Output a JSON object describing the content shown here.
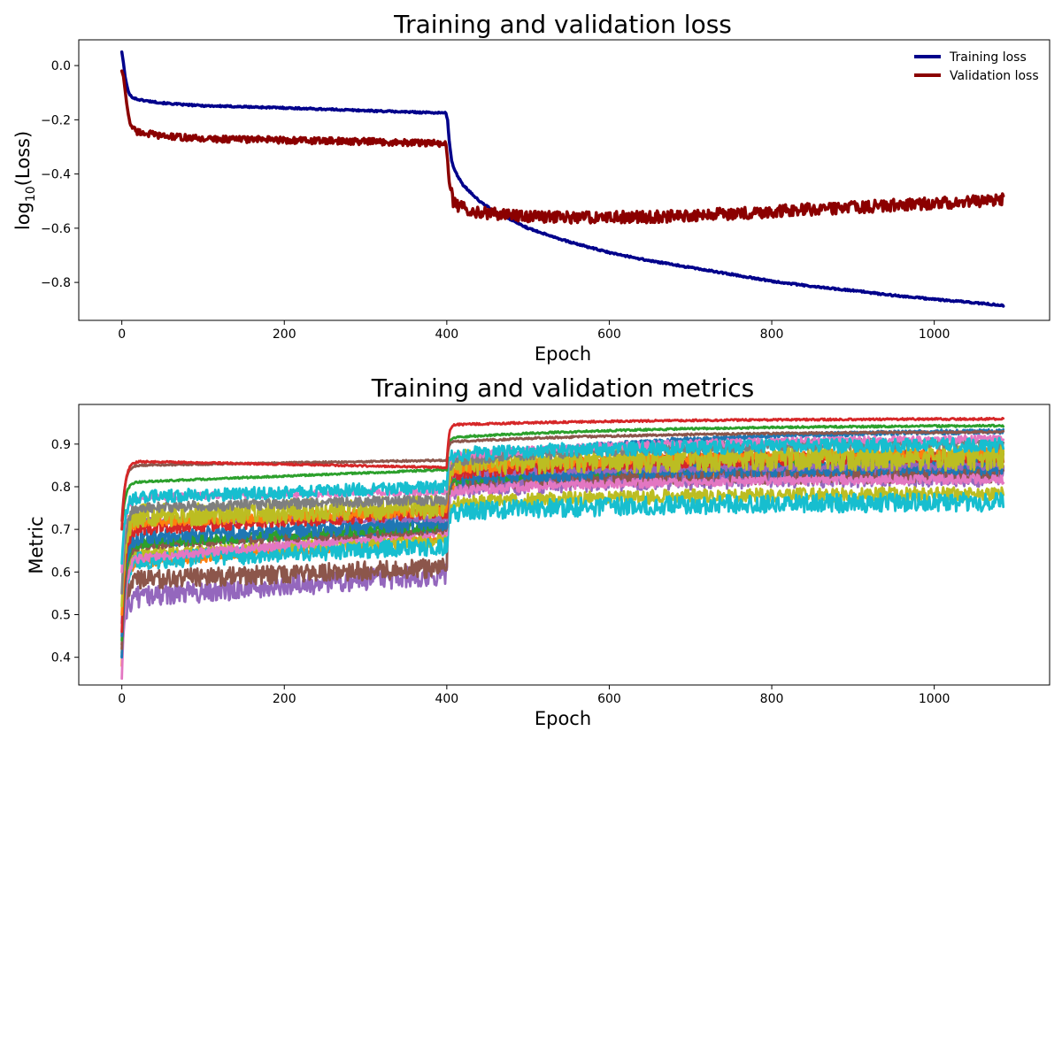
{
  "chart_data": [
    {
      "type": "line",
      "title": "Training and validation loss",
      "xlabel": "Epoch",
      "ylabel": "log10(Loss)",
      "ylabel_main": "log",
      "ylabel_sub": "10",
      "ylabel_tail": "(Loss)",
      "xlim": [
        -53,
        1142
      ],
      "ylim": [
        -0.94,
        0.095
      ],
      "xticks": [
        0,
        200,
        400,
        600,
        800,
        1000
      ],
      "yticks": [
        0.0,
        -0.2,
        -0.4,
        -0.6,
        -0.8
      ],
      "xtick_labels": [
        "0",
        "200",
        "400",
        "600",
        "800",
        "1000"
      ],
      "ytick_labels": [
        "0.0",
        "−0.2",
        "−0.4",
        "−0.6",
        "−0.8"
      ],
      "grid": false,
      "legend_position": "top-right",
      "series": [
        {
          "name": "Training loss",
          "color": "#00008b",
          "points": [
            [
              0,
              0.05
            ],
            [
              2,
              0.01
            ],
            [
              4,
              -0.04
            ],
            [
              6,
              -0.07
            ],
            [
              8,
              -0.095
            ],
            [
              10,
              -0.11
            ],
            [
              15,
              -0.12
            ],
            [
              20,
              -0.125
            ],
            [
              30,
              -0.13
            ],
            [
              50,
              -0.138
            ],
            [
              75,
              -0.144
            ],
            [
              100,
              -0.148
            ],
            [
              150,
              -0.152
            ],
            [
              200,
              -0.156
            ],
            [
              250,
              -0.161
            ],
            [
              300,
              -0.166
            ],
            [
              350,
              -0.171
            ],
            [
              399,
              -0.175
            ],
            [
              401,
              -0.2
            ],
            [
              403,
              -0.28
            ],
            [
              406,
              -0.35
            ],
            [
              410,
              -0.39
            ],
            [
              420,
              -0.44
            ],
            [
              430,
              -0.47
            ],
            [
              440,
              -0.5
            ],
            [
              460,
              -0.54
            ],
            [
              480,
              -0.57
            ],
            [
              500,
              -0.6
            ],
            [
              550,
              -0.65
            ],
            [
              600,
              -0.69
            ],
            [
              650,
              -0.72
            ],
            [
              700,
              -0.745
            ],
            [
              750,
              -0.77
            ],
            [
              800,
              -0.795
            ],
            [
              850,
              -0.815
            ],
            [
              900,
              -0.83
            ],
            [
              950,
              -0.848
            ],
            [
              1000,
              -0.862
            ],
            [
              1050,
              -0.875
            ],
            [
              1085,
              -0.885
            ]
          ]
        },
        {
          "name": "Validation loss",
          "color": "#8b0000",
          "points": [
            [
              0,
              -0.02
            ],
            [
              2,
              -0.04
            ],
            [
              4,
              -0.09
            ],
            [
              6,
              -0.14
            ],
            [
              8,
              -0.18
            ],
            [
              10,
              -0.21
            ],
            [
              15,
              -0.235
            ],
            [
              20,
              -0.245
            ],
            [
              30,
              -0.25
            ],
            [
              50,
              -0.26
            ],
            [
              75,
              -0.265
            ],
            [
              100,
              -0.27
            ],
            [
              150,
              -0.272
            ],
            [
              200,
              -0.275
            ],
            [
              250,
              -0.278
            ],
            [
              300,
              -0.28
            ],
            [
              350,
              -0.284
            ],
            [
              399,
              -0.288
            ],
            [
              401,
              -0.36
            ],
            [
              404,
              -0.45
            ],
            [
              408,
              -0.5
            ],
            [
              415,
              -0.52
            ],
            [
              430,
              -0.535
            ],
            [
              450,
              -0.545
            ],
            [
              500,
              -0.555
            ],
            [
              550,
              -0.56
            ],
            [
              600,
              -0.56
            ],
            [
              650,
              -0.558
            ],
            [
              700,
              -0.553
            ],
            [
              750,
              -0.546
            ],
            [
              800,
              -0.538
            ],
            [
              850,
              -0.53
            ],
            [
              900,
              -0.523
            ],
            [
              950,
              -0.515
            ],
            [
              1000,
              -0.508
            ],
            [
              1050,
              -0.5
            ],
            [
              1085,
              -0.495
            ]
          ]
        }
      ]
    },
    {
      "type": "line",
      "title": "Training and validation metrics",
      "xlabel": "Epoch",
      "ylabel": "Metric",
      "xlim": [
        -53,
        1142
      ],
      "ylim": [
        0.335,
        0.993
      ],
      "xticks": [
        0,
        200,
        400,
        600,
        800,
        1000
      ],
      "yticks": [
        0.4,
        0.5,
        0.6,
        0.7,
        0.8,
        0.9
      ],
      "xtick_labels": [
        "0",
        "200",
        "400",
        "600",
        "800",
        "1000"
      ],
      "ytick_labels": [
        "0.4",
        "0.5",
        "0.6",
        "0.7",
        "0.8",
        "0.9"
      ],
      "grid": false,
      "legend": false,
      "series": [
        {
          "color": "#d62728",
          "start": 0.7,
          "early": 0.86,
          "pre": 0.845,
          "post_start": 0.945,
          "end": 0.96,
          "noise": 0.002
        },
        {
          "color": "#8c564b",
          "start": 0.72,
          "early": 0.85,
          "pre": 0.862,
          "post_start": 0.905,
          "end": 0.93,
          "noise": 0.002
        },
        {
          "color": "#2ca02c",
          "start": 0.7,
          "early": 0.81,
          "pre": 0.84,
          "post_start": 0.915,
          "end": 0.945,
          "noise": 0.002
        },
        {
          "color": "#17becf",
          "start": 0.62,
          "early": 0.775,
          "pre": 0.8,
          "post_start": 0.875,
          "end": 0.9,
          "noise": 0.015
        },
        {
          "color": "#e377c2",
          "start": 0.6,
          "early": 0.775,
          "pre": 0.79,
          "post_start": 0.87,
          "end": 0.915,
          "noise": 0.008
        },
        {
          "color": "#7f7f7f",
          "start": 0.55,
          "early": 0.75,
          "pre": 0.77,
          "post_start": 0.86,
          "end": 0.905,
          "noise": 0.012
        },
        {
          "color": "#bcbd22",
          "start": 0.52,
          "early": 0.73,
          "pre": 0.755,
          "post_start": 0.855,
          "end": 0.87,
          "noise": 0.028
        },
        {
          "color": "#ff7f0e",
          "start": 0.5,
          "early": 0.715,
          "pre": 0.745,
          "post_start": 0.84,
          "end": 0.88,
          "noise": 0.012
        },
        {
          "color": "#d62728",
          "start": 0.46,
          "early": 0.7,
          "pre": 0.74,
          "post_start": 0.83,
          "end": 0.875,
          "noise": 0.015
        },
        {
          "color": "#9467bd",
          "start": 0.48,
          "early": 0.72,
          "pre": 0.725,
          "post_start": 0.83,
          "end": 0.85,
          "noise": 0.008
        },
        {
          "color": "#1f77b4",
          "start": 0.45,
          "early": 0.68,
          "pre": 0.715,
          "post_start": 0.82,
          "end": 0.85,
          "noise": 0.018
        },
        {
          "color": "#2ca02c",
          "start": 0.44,
          "early": 0.665,
          "pre": 0.71,
          "post_start": 0.815,
          "end": 0.86,
          "noise": 0.012
        },
        {
          "color": "#8c564b",
          "start": 0.42,
          "early": 0.66,
          "pre": 0.7,
          "post_start": 0.82,
          "end": 0.875,
          "noise": 0.01
        },
        {
          "color": "#1f77b4",
          "start": 0.4,
          "early": 0.66,
          "pre": 0.7,
          "post_start": 0.855,
          "end": 0.935,
          "noise": 0.005
        },
        {
          "color": "#e377c2",
          "start": 0.35,
          "early": 0.63,
          "pre": 0.695,
          "post_start": 0.79,
          "end": 0.82,
          "noise": 0.01
        },
        {
          "color": "#17becf",
          "start": 0.4,
          "early": 0.625,
          "pre": 0.66,
          "post_start": 0.74,
          "end": 0.765,
          "noise": 0.02
        },
        {
          "color": "#bcbd22",
          "start": 0.41,
          "early": 0.64,
          "pre": 0.675,
          "post_start": 0.76,
          "end": 0.785,
          "noise": 0.015
        },
        {
          "color": "#8c564b",
          "start": 0.43,
          "early": 0.58,
          "pre": 0.61,
          "post_start": 0.815,
          "end": 0.835,
          "noise": 0.022
        },
        {
          "color": "#9467bd",
          "start": 0.4,
          "early": 0.54,
          "pre": 0.595,
          "post_start": 0.8,
          "end": 0.83,
          "noise": 0.025
        },
        {
          "color": "#ff7f0e",
          "start": 0.38,
          "early": 0.62,
          "pre": 0.68,
          "post_start": 0.8,
          "end": 0.84,
          "noise": 0.012
        }
      ]
    }
  ]
}
